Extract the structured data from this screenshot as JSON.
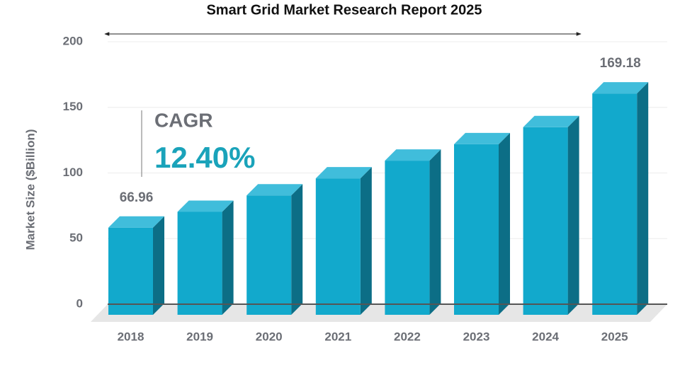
{
  "chart_data": {
    "type": "bar3d",
    "title": "Smart Grid Market Research Report 2025",
    "y_label": "Market Size ($Billion)",
    "categories": [
      "2018",
      "2019",
      "2020",
      "2021",
      "2022",
      "2023",
      "2024",
      "2025"
    ],
    "values": [
      66.96,
      79,
      91.5,
      104.5,
      118,
      130.5,
      143.5,
      169.18
    ],
    "labeled_points": [
      0,
      7
    ],
    "colors": {
      "front": "#12a9cc",
      "top": "#40bddb",
      "side": "#0c6e86"
    },
    "ylim": [
      0,
      200
    ],
    "yticks": [
      0,
      50,
      100,
      150,
      200
    ],
    "grid": true,
    "annotations": {
      "cagr_label": "CAGR",
      "cagr_value": "12.40%"
    }
  }
}
